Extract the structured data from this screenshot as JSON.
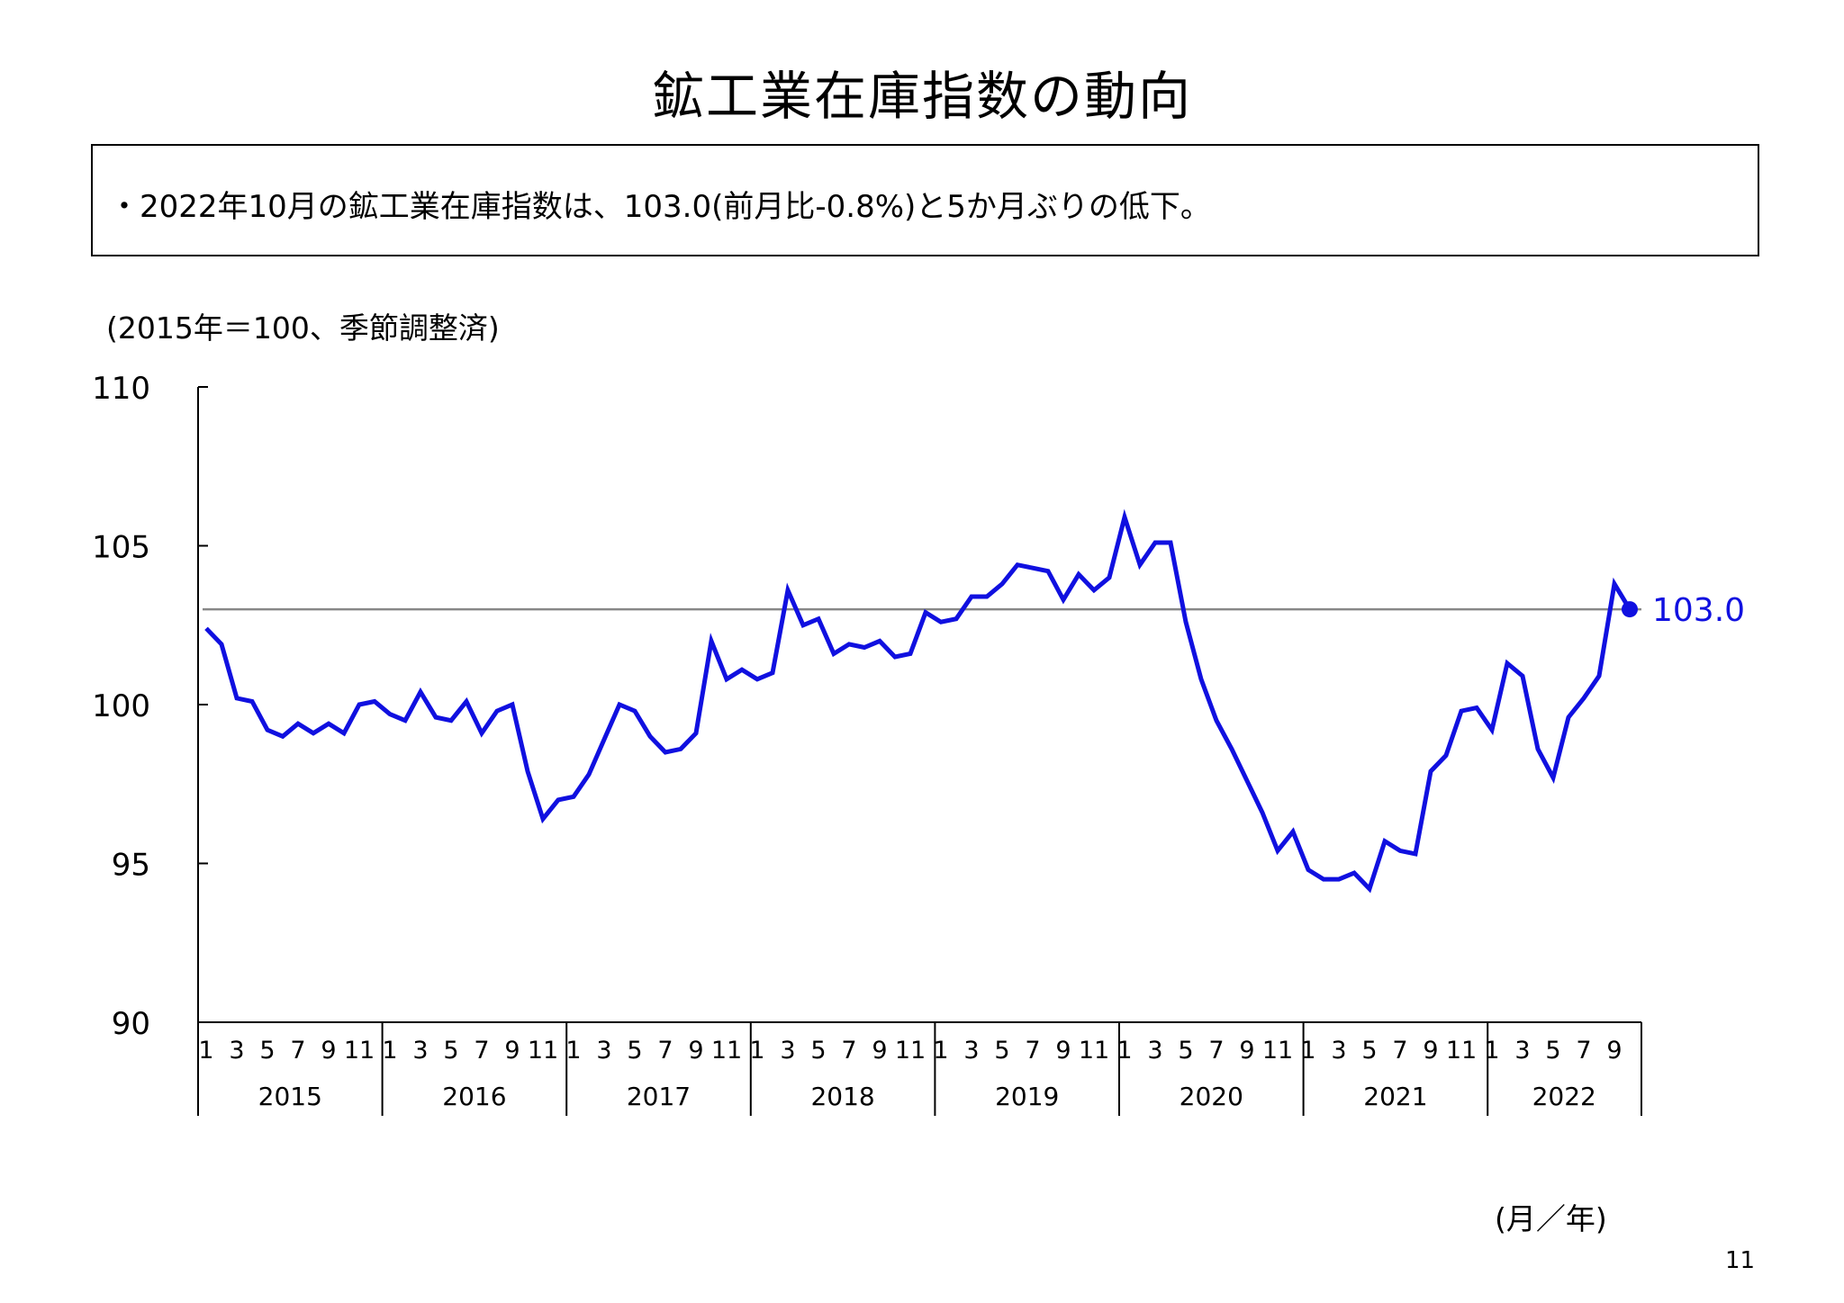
{
  "page": {
    "title": "鉱工業在庫指数の動向",
    "summary": "・2022年10月の鉱工業在庫指数は、103.0(前月比-0.8%)と5か月ぶりの低下。",
    "unit_note": "(2015年＝100、季節調整済)",
    "x_unit": "(月／年)",
    "page_number": "11"
  },
  "chart_data": {
    "type": "line",
    "x_label": "(月／年)",
    "y_label": "(2015年＝100、季節調整済)",
    "ylim": [
      90,
      110
    ],
    "y_ticks": [
      "90",
      "95",
      "100",
      "105",
      "110"
    ],
    "years": [
      "2015",
      "2016",
      "2017",
      "2018",
      "2019",
      "2020",
      "2021",
      "2022"
    ],
    "month_ticks": [
      "1",
      "3",
      "5",
      "7",
      "9",
      "11"
    ],
    "month_ticks_last_year": [
      "1",
      "3",
      "5",
      "7",
      "9"
    ],
    "reference_line": 103.0,
    "series_color": "#1010e0",
    "reference_color": "#888888",
    "last_label": "103.0",
    "series": [
      {
        "values": [
          102.4,
          101.9,
          100.2,
          100.1,
          99.2,
          99.0,
          99.4,
          99.1,
          99.4,
          99.1,
          100.0,
          100.1,
          99.7,
          99.5,
          100.4,
          99.6,
          99.5,
          100.1,
          99.1,
          99.8,
          100.0,
          97.9,
          96.4,
          97.0,
          97.1,
          97.8,
          98.9,
          100.0,
          99.8,
          99.0,
          98.5,
          98.6,
          99.1,
          102.0,
          100.8,
          101.1,
          100.8,
          101.0,
          103.6,
          102.5,
          102.7,
          101.6,
          101.9,
          101.8,
          102.0,
          101.5,
          101.6,
          102.9,
          102.6,
          102.7,
          103.4,
          103.4,
          103.8,
          104.4,
          104.3,
          104.2,
          103.3,
          104.1,
          103.6,
          104.0,
          105.9,
          104.4,
          105.1,
          105.1,
          102.6,
          100.8,
          99.5,
          98.6,
          97.6,
          96.6,
          95.4,
          96.0,
          94.8,
          94.5,
          94.5,
          94.7,
          94.2,
          95.7,
          95.4,
          95.3,
          97.9,
          98.4,
          99.8,
          99.9,
          99.2,
          101.3,
          100.9,
          98.6,
          97.7,
          99.6,
          100.2,
          100.9,
          103.8,
          103.0
        ]
      }
    ]
  }
}
